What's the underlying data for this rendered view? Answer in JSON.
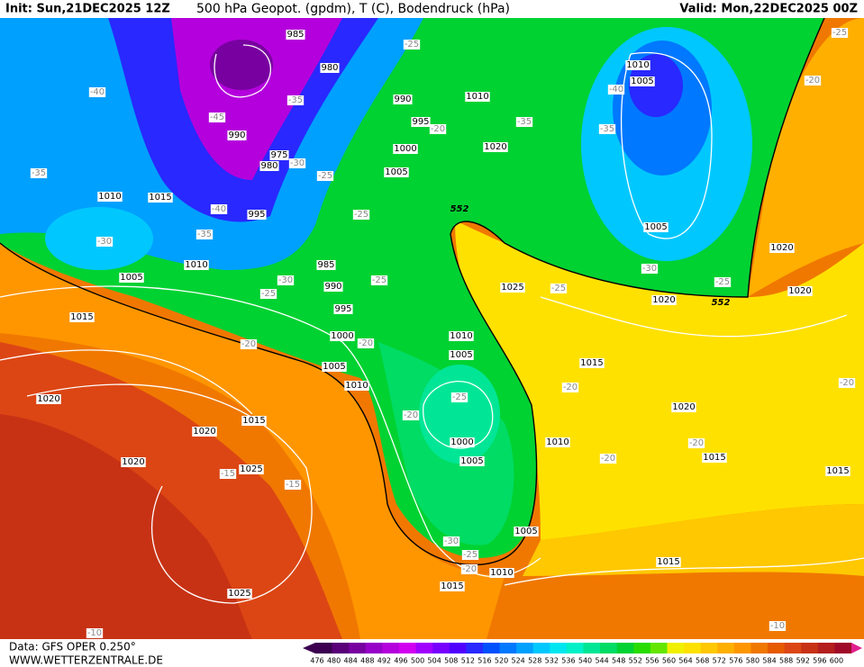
{
  "header": {
    "init": "Init: Sun,21DEC2025 12Z",
    "title": "500 hPa Geopot. (gpdm), T (C), Bodendruck (hPa)",
    "valid": "Valid: Mon,22DEC2025 00Z"
  },
  "footer": {
    "data": "Data: GFS OPER 0.250°",
    "site": "WWW.WETTERZENTRALE.DE"
  },
  "colorbar": {
    "labels": [
      "476",
      "480",
      "484",
      "488",
      "492",
      "496",
      "500",
      "504",
      "508",
      "512",
      "516",
      "520",
      "524",
      "528",
      "532",
      "536",
      "540",
      "544",
      "548",
      "552",
      "556",
      "560",
      "564",
      "568",
      "572",
      "576",
      "580",
      "584",
      "588",
      "592",
      "596",
      "600"
    ],
    "colors": [
      "#3c0050",
      "#5a0078",
      "#7800a0",
      "#9600c8",
      "#b400dc",
      "#d200f0",
      "#a000ff",
      "#7800ff",
      "#5000ff",
      "#2828ff",
      "#0050ff",
      "#0078ff",
      "#00a0ff",
      "#00c8ff",
      "#00e6f0",
      "#00f0c8",
      "#00e696",
      "#00dc64",
      "#00d232",
      "#28dc00",
      "#64e600",
      "#f0f000",
      "#ffe100",
      "#ffc800",
      "#ffaf00",
      "#ff9600",
      "#f07800",
      "#e65a00",
      "#dc4614",
      "#c83214",
      "#b41e1e",
      "#a00a28"
    ]
  },
  "map": {
    "pressure_labels": [
      "985",
      "980",
      "990",
      "975",
      "980",
      "995",
      "990",
      "995",
      "1000",
      "1005",
      "1010",
      "1020",
      "1010",
      "1005",
      "1005",
      "1010",
      "1015",
      "1010",
      "1005",
      "1015",
      "985",
      "990",
      "995",
      "1000",
      "1005",
      "1010",
      "1025",
      "1020",
      "1020",
      "1020",
      "1010",
      "1005",
      "1015",
      "1020",
      "1020",
      "1015",
      "1020",
      "1020",
      "1025",
      "1000",
      "1005",
      "1010",
      "1015",
      "1015",
      "1005",
      "1010",
      "1015",
      "1025",
      "1015"
    ],
    "temperature_labels": [
      "-25",
      "-35",
      "-45",
      "-40",
      "-35",
      "-30",
      "-25",
      "-25",
      "-20",
      "-35",
      "-40",
      "-35",
      "-30",
      "-25",
      "-30",
      "-25",
      "-20",
      "-20",
      "-40",
      "-35",
      "-30",
      "-25",
      "-25",
      "-25",
      "-20",
      "-25",
      "-20",
      "-20",
      "-20",
      "-20",
      "-20",
      "-15",
      "-15",
      "-30",
      "-25",
      "-20",
      "-10",
      "-10"
    ],
    "geopotential_labels": [
      "552",
      "552"
    ]
  }
}
